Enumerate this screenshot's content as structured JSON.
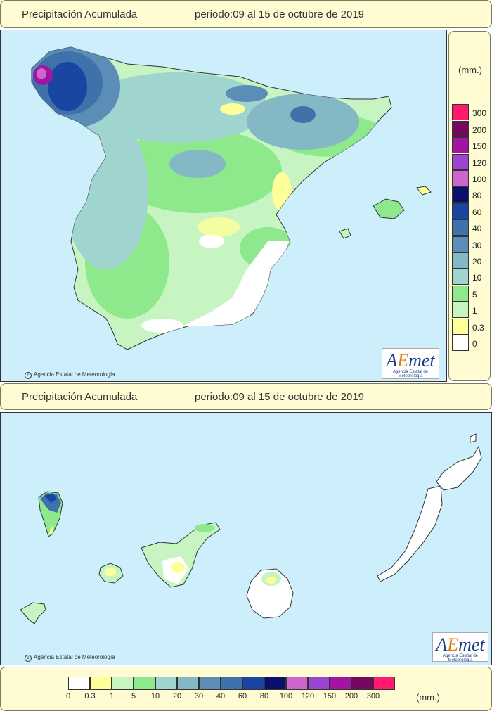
{
  "header_top": {
    "title": "Precipitación Acumulada",
    "period": "periodo:09 al 15 de octubre de 2019"
  },
  "header_middle": {
    "title": "Precipitación Acumulada",
    "period": "periodo:09 al 15 de octubre de 2019"
  },
  "credit": "Agencia Estatal de Meteorología",
  "logo": {
    "word_a": "A",
    "word_e": "E",
    "word_rest": "met",
    "subtitle": "Agencia Estatal de Meteorología"
  },
  "legend": {
    "unit": "(mm.)",
    "bins": [
      {
        "label": "0",
        "color": "#ffffff"
      },
      {
        "label": "0.3",
        "color": "#ffff9a"
      },
      {
        "label": "1",
        "color": "#c7f5c1"
      },
      {
        "label": "5",
        "color": "#8ee88c"
      },
      {
        "label": "10",
        "color": "#9fd4cf"
      },
      {
        "label": "20",
        "color": "#84b8c5"
      },
      {
        "label": "30",
        "color": "#5b8db6"
      },
      {
        "label": "40",
        "color": "#3f72ab"
      },
      {
        "label": "60",
        "color": "#1946a3"
      },
      {
        "label": "80",
        "color": "#0b0f6b"
      },
      {
        "label": "100",
        "color": "#cc66cc"
      },
      {
        "label": "120",
        "color": "#9b45d1"
      },
      {
        "label": "150",
        "color": "#a214a2"
      },
      {
        "label": "200",
        "color": "#730a60"
      },
      {
        "label": "300",
        "color": "#ff1a6e"
      }
    ]
  },
  "colors": {
    "sea": "#cdeffb",
    "panel": "#fffcd3"
  }
}
